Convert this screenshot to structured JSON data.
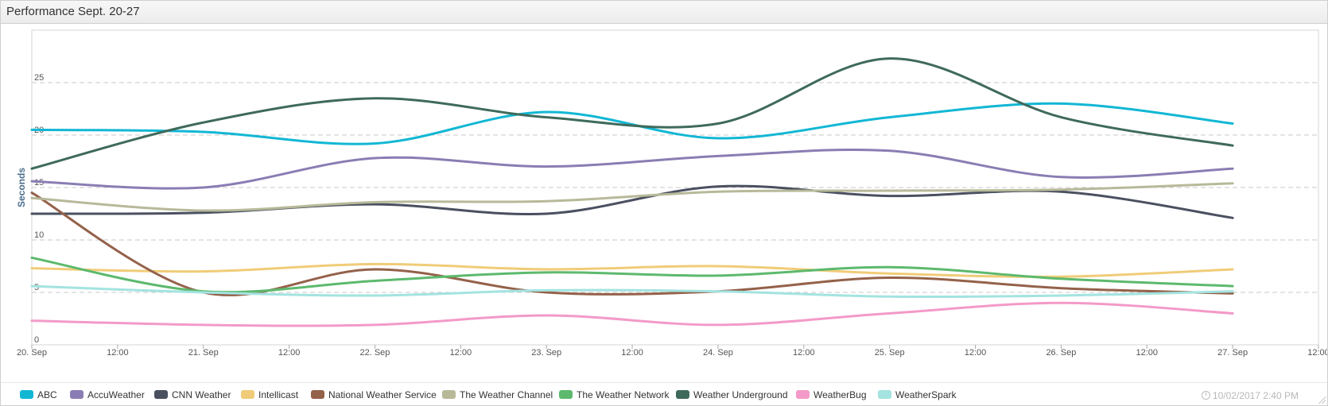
{
  "panel": {
    "title": "Performance Sept. 20-27"
  },
  "timestamp": "10/02/2017 2:40 PM",
  "chart_data": {
    "type": "line",
    "ylabel": "Seconds",
    "ylim": [
      0,
      30
    ],
    "y_ticks": [
      0,
      5,
      10,
      15,
      20,
      25
    ],
    "x_ticks": [
      "20. Sep",
      "12:00",
      "21. Sep",
      "12:00",
      "22. Sep",
      "12:00",
      "23. Sep",
      "12:00",
      "24. Sep",
      "12:00",
      "25. Sep",
      "12:00",
      "26. Sep",
      "12:00",
      "27. Sep",
      "12:00"
    ],
    "x": [
      "20. Sep",
      "21. Sep",
      "22. Sep",
      "23. Sep",
      "24. Sep",
      "25. Sep",
      "26. Sep",
      "27. Sep"
    ],
    "grid": "dashed horizontal",
    "legend": "bottom",
    "series": [
      {
        "name": "ABC",
        "color": "#12b7d4",
        "values": [
          20.5,
          20.3,
          19.2,
          22.2,
          19.7,
          21.7,
          23.0,
          21.1
        ]
      },
      {
        "name": "AccuWeather",
        "color": "#8a7db3",
        "values": [
          15.6,
          15.0,
          17.8,
          17.0,
          18.0,
          18.5,
          16.0,
          16.8
        ]
      },
      {
        "name": "CNN Weather",
        "color": "#4a5060",
        "values": [
          12.5,
          12.6,
          13.4,
          12.5,
          15.1,
          14.2,
          14.6,
          12.1
        ]
      },
      {
        "name": "Intellicast",
        "color": "#f0cc78",
        "values": [
          7.3,
          7.0,
          7.7,
          7.2,
          7.5,
          6.8,
          6.5,
          7.2
        ]
      },
      {
        "name": "National Weather Service",
        "color": "#94614a",
        "values": [
          14.5,
          5.0,
          7.2,
          5.0,
          5.1,
          6.4,
          5.4,
          4.9
        ]
      },
      {
        "name": "The Weather Channel",
        "color": "#b7b999",
        "values": [
          14.0,
          12.8,
          13.6,
          13.7,
          14.6,
          14.7,
          14.8,
          15.4
        ]
      },
      {
        "name": "The Weather Network",
        "color": "#5cb96d",
        "values": [
          8.3,
          5.1,
          6.1,
          6.9,
          6.6,
          7.4,
          6.3,
          5.6
        ]
      },
      {
        "name": "Weather Underground",
        "color": "#3f6a5b",
        "values": [
          16.8,
          21.2,
          23.5,
          21.7,
          21.1,
          27.3,
          21.7,
          19.0
        ]
      },
      {
        "name": "WeatherBug",
        "color": "#f39ac8",
        "values": [
          2.3,
          1.9,
          1.9,
          2.8,
          1.9,
          3.0,
          4.0,
          3.0
        ]
      },
      {
        "name": "WeatherSpark",
        "color": "#a3e3e0",
        "values": [
          5.6,
          5.0,
          4.7,
          5.2,
          5.1,
          4.6,
          4.7,
          5.1
        ]
      }
    ]
  }
}
